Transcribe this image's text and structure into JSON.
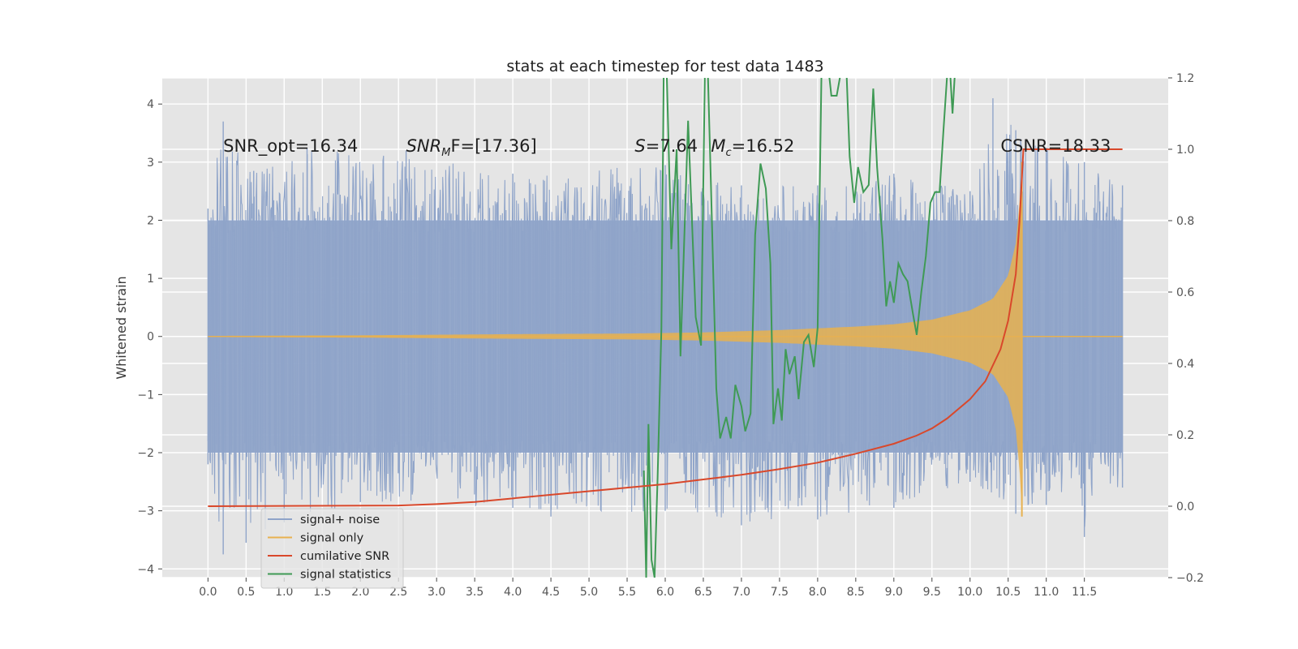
{
  "chart_data": {
    "type": "line",
    "title": "stats at each timestep for test data 1483",
    "ylabel": "Whitened strain",
    "xlim": [
      -0.6,
      12.6
    ],
    "ylim": [
      -4.15,
      4.45
    ],
    "y2lim": [
      -0.2,
      1.2
    ],
    "xticks": [
      0.0,
      0.5,
      1.0,
      1.5,
      2.0,
      2.5,
      3.0,
      3.5,
      4.0,
      4.5,
      5.0,
      5.5,
      6.0,
      6.5,
      7.0,
      7.5,
      8.0,
      8.5,
      9.0,
      9.5,
      10.0,
      10.5,
      11.0,
      11.5
    ],
    "xtick_labels": [
      "0.0",
      "0.5",
      "1.0",
      "1.5",
      "2.0",
      "2.5",
      "3.0",
      "3.5",
      "4.0",
      "4.5",
      "5.0",
      "5.5",
      "6.0",
      "6.5",
      "7.0",
      "7.5",
      "8.0",
      "8.5",
      "9.0",
      "9.5",
      "10.0",
      "10.5",
      "11.0",
      "11.5"
    ],
    "yticks": [
      -4,
      -3,
      -2,
      -1,
      0,
      1,
      2,
      3,
      4
    ],
    "ytick_labels": [
      "−4",
      "−3",
      "−2",
      "−1",
      "0",
      "1",
      "2",
      "3",
      "4"
    ],
    "y2ticks": [
      -0.2,
      0.0,
      0.2,
      0.4,
      0.6,
      0.8,
      1.0,
      1.2
    ],
    "y2tick_labels": [
      "−0.2",
      "0.0",
      "0.2",
      "0.4",
      "0.6",
      "0.8",
      "1.0",
      "1.2"
    ],
    "grid": true,
    "legend_position": "lower-left",
    "annotations": [
      {
        "x": 0.2,
        "y": 3.28,
        "prefix": "SNR_opt=16.34",
        "italic": "",
        "sub": "",
        "suffix": ""
      },
      {
        "x": 2.6,
        "y": 3.28,
        "prefix": "",
        "italic": "SNR",
        "sub": "M",
        "suffix": "F=[17.36]"
      },
      {
        "x": 5.6,
        "y": 3.28,
        "prefix": "",
        "italic": "S",
        "sub": "",
        "suffix": "=7.64"
      },
      {
        "x": 6.6,
        "y": 3.28,
        "prefix": "",
        "italic": "M",
        "sub": "c",
        "suffix": "=16.52"
      },
      {
        "x": 10.4,
        "y": 3.28,
        "prefix": "CSNR=18.33",
        "italic": "",
        "sub": "",
        "suffix": ""
      }
    ],
    "series": [
      {
        "name": "signal+ noise",
        "color": "#8fa4c9",
        "axis": "left",
        "range": [
          0.0,
          12.0
        ],
        "envelope_upper": [
          [
            0.0,
            2.2
          ],
          [
            0.2,
            3.7
          ],
          [
            0.6,
            2.85
          ],
          [
            1.3,
            3.25
          ],
          [
            2.6,
            3.2
          ],
          [
            4.0,
            2.8
          ],
          [
            6.0,
            2.95
          ],
          [
            7.0,
            2.6
          ],
          [
            8.0,
            2.6
          ],
          [
            9.0,
            2.8
          ],
          [
            10.0,
            2.5
          ],
          [
            10.3,
            4.1
          ],
          [
            10.6,
            3.55
          ],
          [
            11.0,
            3.25
          ],
          [
            11.5,
            3.0
          ],
          [
            12.0,
            2.6
          ]
        ],
        "envelope_lower": [
          [
            0.0,
            -2.2
          ],
          [
            0.2,
            -3.75
          ],
          [
            0.5,
            -3.55
          ],
          [
            1.0,
            -3.2
          ],
          [
            2.0,
            -2.85
          ],
          [
            4.0,
            -2.95
          ],
          [
            4.5,
            -3.1
          ],
          [
            6.0,
            -3.0
          ],
          [
            7.0,
            -3.25
          ],
          [
            8.0,
            -3.15
          ],
          [
            9.0,
            -2.95
          ],
          [
            10.0,
            -2.5
          ],
          [
            10.6,
            -3.05
          ],
          [
            11.0,
            -2.9
          ],
          [
            11.5,
            -3.45
          ],
          [
            12.0,
            -2.6
          ]
        ],
        "band": 2.0
      },
      {
        "name": "signal only",
        "color": "#e8b14f",
        "axis": "left",
        "amplitude": [
          [
            0.0,
            0.01
          ],
          [
            2.0,
            0.02
          ],
          [
            4.0,
            0.04
          ],
          [
            5.5,
            0.05
          ],
          [
            6.5,
            0.07
          ],
          [
            7.5,
            0.11
          ],
          [
            8.5,
            0.17
          ],
          [
            9.0,
            0.21
          ],
          [
            9.5,
            0.29
          ],
          [
            10.0,
            0.45
          ],
          [
            10.3,
            0.65
          ],
          [
            10.5,
            1.05
          ],
          [
            10.6,
            1.6
          ],
          [
            10.65,
            2.3
          ],
          [
            10.68,
            3.0
          ],
          [
            10.7,
            0.0
          ]
        ],
        "tail_end": 12.0
      },
      {
        "name": "cumilative SNR",
        "color": "#d9482b",
        "axis": "right",
        "points": [
          [
            0.0,
            0.0
          ],
          [
            2.5,
            0.002
          ],
          [
            3.0,
            0.006
          ],
          [
            3.5,
            0.012
          ],
          [
            4.0,
            0.022
          ],
          [
            4.5,
            0.032
          ],
          [
            5.0,
            0.042
          ],
          [
            5.5,
            0.052
          ],
          [
            6.0,
            0.062
          ],
          [
            6.5,
            0.075
          ],
          [
            7.0,
            0.088
          ],
          [
            7.5,
            0.104
          ],
          [
            8.0,
            0.122
          ],
          [
            8.5,
            0.147
          ],
          [
            9.0,
            0.175
          ],
          [
            9.3,
            0.198
          ],
          [
            9.5,
            0.218
          ],
          [
            9.7,
            0.246
          ],
          [
            10.0,
            0.3
          ],
          [
            10.2,
            0.35
          ],
          [
            10.4,
            0.44
          ],
          [
            10.5,
            0.52
          ],
          [
            10.6,
            0.65
          ],
          [
            10.65,
            0.8
          ],
          [
            10.68,
            0.92
          ],
          [
            10.7,
            1.0
          ],
          [
            12.0,
            1.0
          ]
        ]
      },
      {
        "name": "signal statistics",
        "color": "#3f9a55",
        "axis": "right",
        "points": [
          [
            5.72,
            0.1
          ],
          [
            5.75,
            -0.2
          ],
          [
            5.78,
            0.23
          ],
          [
            5.82,
            -0.15
          ],
          [
            5.86,
            -0.2
          ],
          [
            5.9,
            0.08
          ],
          [
            5.95,
            0.5
          ],
          [
            5.98,
            1.21
          ],
          [
            6.02,
            1.21
          ],
          [
            6.08,
            0.72
          ],
          [
            6.15,
            1.0
          ],
          [
            6.2,
            0.42
          ],
          [
            6.3,
            1.08
          ],
          [
            6.4,
            0.53
          ],
          [
            6.47,
            0.45
          ],
          [
            6.52,
            1.21
          ],
          [
            6.56,
            1.21
          ],
          [
            6.6,
            0.9
          ],
          [
            6.67,
            0.33
          ],
          [
            6.72,
            0.19
          ],
          [
            6.8,
            0.25
          ],
          [
            6.86,
            0.19
          ],
          [
            6.92,
            0.34
          ],
          [
            7.0,
            0.28
          ],
          [
            7.05,
            0.21
          ],
          [
            7.12,
            0.26
          ],
          [
            7.18,
            0.76
          ],
          [
            7.25,
            0.96
          ],
          [
            7.32,
            0.89
          ],
          [
            7.38,
            0.68
          ],
          [
            7.42,
            0.23
          ],
          [
            7.48,
            0.33
          ],
          [
            7.53,
            0.24
          ],
          [
            7.58,
            0.44
          ],
          [
            7.63,
            0.37
          ],
          [
            7.7,
            0.42
          ],
          [
            7.75,
            0.3
          ],
          [
            7.82,
            0.46
          ],
          [
            7.88,
            0.48
          ],
          [
            7.95,
            0.39
          ],
          [
            8.0,
            0.5
          ],
          [
            8.05,
            1.21
          ],
          [
            8.15,
            1.21
          ],
          [
            8.18,
            1.15
          ],
          [
            8.25,
            1.15
          ],
          [
            8.3,
            1.21
          ],
          [
            8.38,
            1.21
          ],
          [
            8.42,
            0.98
          ],
          [
            8.48,
            0.85
          ],
          [
            8.53,
            0.95
          ],
          [
            8.6,
            0.88
          ],
          [
            8.67,
            0.9
          ],
          [
            8.73,
            1.17
          ],
          [
            8.78,
            0.95
          ],
          [
            8.85,
            0.75
          ],
          [
            8.9,
            0.56
          ],
          [
            8.95,
            0.63
          ],
          [
            9.0,
            0.57
          ],
          [
            9.06,
            0.68
          ],
          [
            9.12,
            0.65
          ],
          [
            9.18,
            0.63
          ],
          [
            9.25,
            0.54
          ],
          [
            9.3,
            0.48
          ],
          [
            9.36,
            0.6
          ],
          [
            9.42,
            0.7
          ],
          [
            9.48,
            0.85
          ],
          [
            9.54,
            0.88
          ],
          [
            9.6,
            0.88
          ],
          [
            9.65,
            1.05
          ],
          [
            9.7,
            1.21
          ],
          [
            9.74,
            1.21
          ],
          [
            9.77,
            1.1
          ],
          [
            9.8,
            1.21
          ]
        ]
      }
    ]
  }
}
